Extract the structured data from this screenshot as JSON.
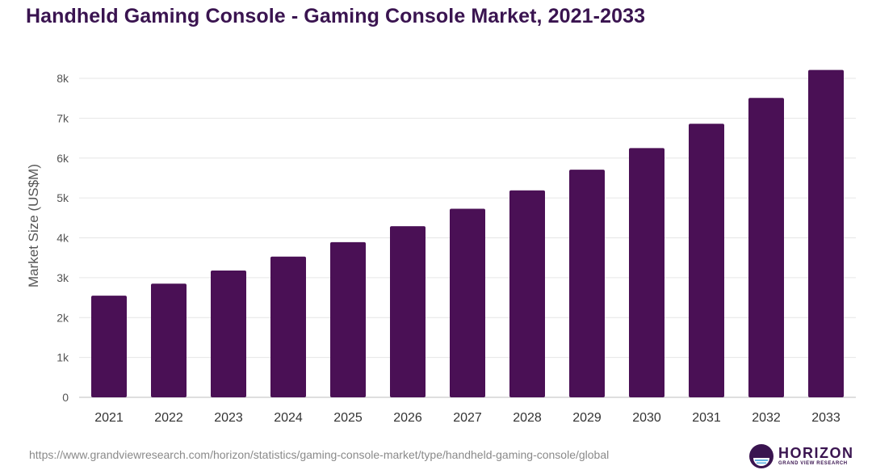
{
  "title": "Handheld Gaming Console - Gaming Console Market, 2021-2033",
  "source": "https://www.grandviewresearch.com/horizon/statistics/gaming-console-market/type/handheld-gaming-console/global",
  "logo": {
    "name": "HORIZON",
    "subtitle": "GRAND VIEW RESEARCH"
  },
  "colors": {
    "bar": "#4a1055",
    "title": "#3a1450",
    "grid": "#e6e6e6"
  },
  "chart_data": {
    "type": "bar",
    "title": "Handheld Gaming Console - Gaming Console Market, 2021-2033",
    "xlabel": "",
    "ylabel": "Market Size (US$M)",
    "ylim": [
      0,
      8000
    ],
    "yticks": [
      0,
      1000,
      2000,
      3000,
      4000,
      5000,
      6000,
      7000,
      8000
    ],
    "ytick_labels": [
      "0",
      "1k",
      "2k",
      "3k",
      "4k",
      "5k",
      "6k",
      "7k",
      "8k"
    ],
    "grid": true,
    "categories": [
      "2021",
      "2022",
      "2023",
      "2024",
      "2025",
      "2026",
      "2027",
      "2028",
      "2029",
      "2030",
      "2031",
      "2032",
      "2033"
    ],
    "values": [
      2550,
      2850,
      3180,
      3530,
      3890,
      4290,
      4730,
      5190,
      5710,
      6250,
      6860,
      7510,
      8210
    ]
  }
}
